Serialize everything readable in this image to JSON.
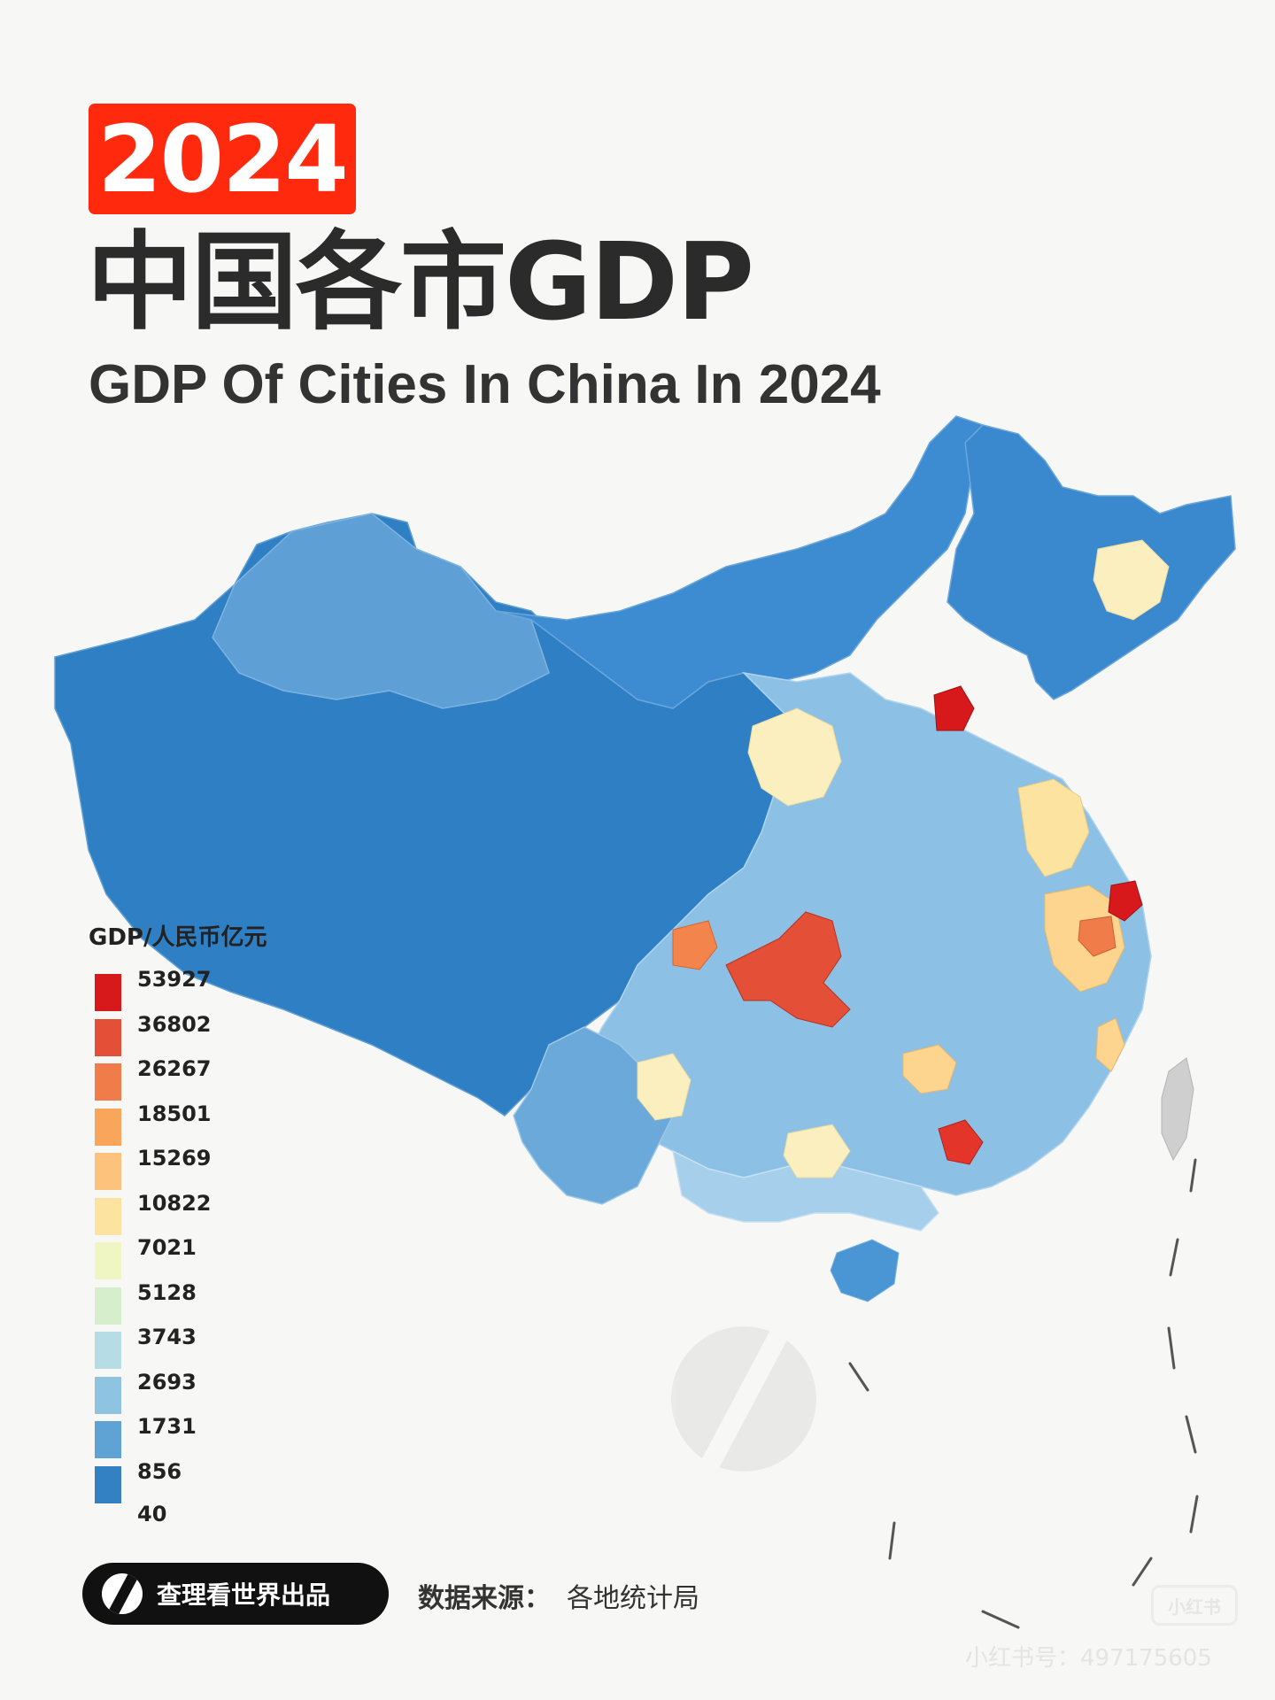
{
  "header": {
    "year": "2024",
    "title_cn": "中国各市GDP",
    "title_en": "GDP Of Cities In China In 2024"
  },
  "legend": {
    "title": "GDP/人民币亿元",
    "items": [
      {
        "value": "53927",
        "color": "#d7191c"
      },
      {
        "value": "36802",
        "color": "#e34f37"
      },
      {
        "value": "26267",
        "color": "#f07c4a"
      },
      {
        "value": "18501",
        "color": "#f9a55c"
      },
      {
        "value": "15269",
        "color": "#fdc37c"
      },
      {
        "value": "10822",
        "color": "#fde3a0"
      },
      {
        "value": "7021",
        "color": "#f0f5c4"
      },
      {
        "value": "5128",
        "color": "#d6eecb"
      },
      {
        "value": "3743",
        "color": "#b6dde6"
      },
      {
        "value": "2693",
        "color": "#8fc3e2"
      },
      {
        "value": "1731",
        "color": "#5ea3d3"
      },
      {
        "value": "856",
        "color": "#3380c2"
      }
    ],
    "floor_value": "40"
  },
  "footer": {
    "brand": "查理看世界出品",
    "source_label": "数据来源：",
    "source_value": "各地统计局"
  },
  "watermark": {
    "platform": "小红书",
    "account": "小红书号：497175605"
  },
  "map_colors": {
    "west": "#2f7fc4",
    "north_west": "#3b8bd0",
    "light_blue": "#8cc0e4",
    "pale_blue": "#b5d8ee",
    "cream": "#fbefc0",
    "yellow": "#fdd58e",
    "orange": "#f2844c",
    "red": "#e3352a",
    "dark_red": "#d11919",
    "taiwan": "#cfcfcf"
  }
}
